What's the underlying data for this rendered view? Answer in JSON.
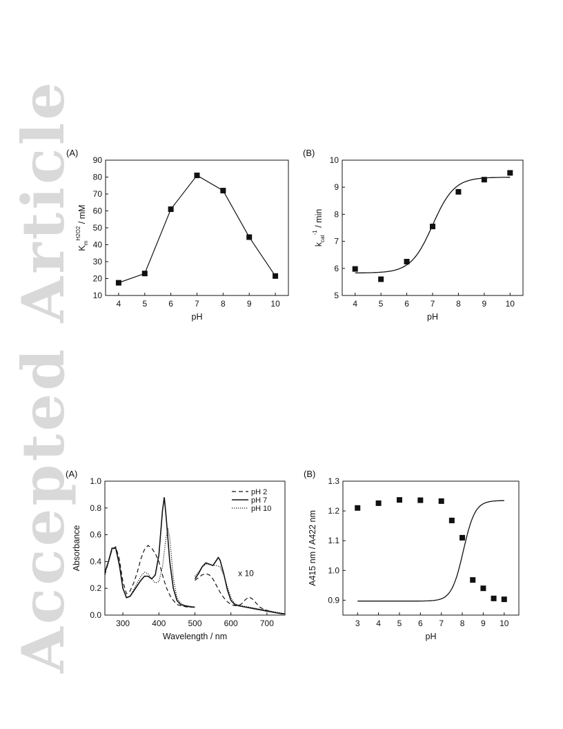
{
  "watermark": {
    "text": "Accepted Article",
    "color": "#d9d9d9"
  },
  "chart_data": [
    {
      "id": "fig1a",
      "type": "line",
      "panel_label": "(A)",
      "xlabel": "pH",
      "ylabel_main": "K",
      "ylabel_sub": "m",
      "ylabel_sup": "H2O2",
      "ylabel_unit": " / mM",
      "xlim": [
        3.5,
        10.5
      ],
      "ylim": [
        10,
        90
      ],
      "xticks": [
        4,
        5,
        6,
        7,
        8,
        9,
        10
      ],
      "yticks": [
        10,
        20,
        30,
        40,
        50,
        60,
        70,
        80,
        90
      ],
      "series": [
        {
          "x": [
            4,
            5,
            6,
            7,
            8,
            9,
            10
          ],
          "y": [
            17.5,
            23,
            61,
            81,
            72,
            44.5,
            21.5
          ],
          "marker": "square",
          "line": "connect"
        }
      ]
    },
    {
      "id": "fig1b",
      "type": "scatter",
      "panel_label": "(B)",
      "xlabel": "pH",
      "ylabel_main": "k",
      "ylabel_sub": "cat",
      "ylabel_sup": "-1",
      "ylabel_unit": " / min",
      "xlim": [
        3.5,
        10.5
      ],
      "ylim": [
        5,
        10
      ],
      "xticks": [
        4,
        5,
        6,
        7,
        8,
        9,
        10
      ],
      "yticks": [
        5,
        6,
        7,
        8,
        9,
        10
      ],
      "series": [
        {
          "x": [
            4,
            5,
            6,
            7,
            8,
            9,
            10
          ],
          "y": [
            5.98,
            5.6,
            6.25,
            7.55,
            8.83,
            9.28,
            9.53
          ],
          "marker": "square"
        }
      ],
      "fit": {
        "model": "sigmoid",
        "bottom": 5.83,
        "top": 9.37,
        "x0": 7.0,
        "width": 0.42
      }
    },
    {
      "id": "fig2a",
      "type": "line",
      "panel_label": "(A)",
      "xlabel": "Wavelength / nm",
      "ylabel": "Absorbance",
      "xlim": [
        250,
        750
      ],
      "ylim": [
        0,
        1.0
      ],
      "xticks": [
        300,
        400,
        500,
        600,
        700
      ],
      "yticks": [
        0.0,
        0.2,
        0.4,
        0.6,
        0.8,
        1.0
      ],
      "annotation": "x 10",
      "legend_position": "top-right",
      "series": [
        {
          "name": "pH 2",
          "style": "dashed",
          "segments": [
            {
              "x": [
                250,
                260,
                270,
                280,
                290,
                300,
                310,
                320,
                330,
                340,
                350,
                360,
                370,
                380,
                390,
                400,
                410,
                420,
                430,
                440,
                450,
                460,
                470,
                480,
                490,
                500
              ],
              "y": [
                0.3,
                0.4,
                0.49,
                0.51,
                0.42,
                0.25,
                0.16,
                0.18,
                0.24,
                0.32,
                0.42,
                0.49,
                0.52,
                0.5,
                0.46,
                0.4,
                0.3,
                0.21,
                0.15,
                0.11,
                0.08,
                0.07,
                0.065,
                0.06,
                0.06,
                0.06
              ]
            },
            {
              "x": [
                500,
                510,
                520,
                530,
                540,
                550,
                560,
                570,
                580,
                590,
                600,
                610,
                620,
                630,
                640,
                650,
                660,
                670,
                680,
                690,
                700,
                710,
                720,
                730,
                740,
                750
              ],
              "y": [
                0.26,
                0.28,
                0.3,
                0.31,
                0.3,
                0.27,
                0.22,
                0.17,
                0.13,
                0.1,
                0.08,
                0.07,
                0.07,
                0.085,
                0.115,
                0.135,
                0.12,
                0.09,
                0.06,
                0.045,
                0.035,
                0.025,
                0.02,
                0.015,
                0.01,
                0.01
              ]
            }
          ]
        },
        {
          "name": "pH 7",
          "style": "solid",
          "segments": [
            {
              "x": [
                250,
                260,
                270,
                280,
                290,
                300,
                310,
                320,
                330,
                340,
                350,
                360,
                370,
                380,
                390,
                400,
                410,
                415,
                420,
                430,
                440,
                450,
                460,
                470,
                480,
                490,
                500
              ],
              "y": [
                0.32,
                0.4,
                0.5,
                0.5,
                0.38,
                0.2,
                0.13,
                0.14,
                0.18,
                0.22,
                0.26,
                0.29,
                0.29,
                0.27,
                0.3,
                0.45,
                0.78,
                0.88,
                0.74,
                0.4,
                0.2,
                0.11,
                0.08,
                0.07,
                0.065,
                0.06,
                0.06
              ]
            },
            {
              "x": [
                500,
                510,
                520,
                530,
                540,
                550,
                560,
                565,
                570,
                580,
                590,
                600,
                610,
                620,
                630,
                640,
                650,
                660,
                670,
                680,
                690,
                700,
                710,
                720,
                730,
                740,
                750
              ],
              "y": [
                0.27,
                0.31,
                0.36,
                0.39,
                0.38,
                0.37,
                0.41,
                0.43,
                0.41,
                0.31,
                0.19,
                0.11,
                0.08,
                0.07,
                0.065,
                0.06,
                0.055,
                0.05,
                0.045,
                0.04,
                0.035,
                0.03,
                0.025,
                0.02,
                0.015,
                0.012,
                0.01
              ]
            }
          ]
        },
        {
          "name": "pH 10",
          "style": "dotted",
          "segments": [
            {
              "x": [
                250,
                260,
                270,
                280,
                290,
                300,
                310,
                320,
                330,
                340,
                350,
                360,
                370,
                380,
                390,
                400,
                410,
                420,
                425,
                430,
                440,
                450,
                460,
                470,
                480,
                490,
                500
              ],
              "y": [
                0.31,
                0.39,
                0.49,
                0.5,
                0.37,
                0.2,
                0.13,
                0.14,
                0.19,
                0.24,
                0.29,
                0.32,
                0.31,
                0.27,
                0.24,
                0.25,
                0.36,
                0.58,
                0.65,
                0.58,
                0.28,
                0.13,
                0.09,
                0.075,
                0.07,
                0.065,
                0.06
              ]
            },
            {
              "x": [
                500,
                510,
                520,
                530,
                540,
                550,
                560,
                570,
                580,
                590,
                600,
                610,
                620,
                630,
                640,
                650,
                660,
                670,
                680,
                690,
                700,
                710,
                720,
                730,
                740,
                750
              ],
              "y": [
                0.29,
                0.32,
                0.36,
                0.38,
                0.38,
                0.37,
                0.37,
                0.36,
                0.3,
                0.21,
                0.13,
                0.09,
                0.075,
                0.07,
                0.065,
                0.06,
                0.055,
                0.05,
                0.045,
                0.04,
                0.035,
                0.03,
                0.025,
                0.02,
                0.015,
                0.01
              ]
            }
          ]
        }
      ]
    },
    {
      "id": "fig2b",
      "type": "scatter",
      "panel_label": "(B)",
      "xlabel": "pH",
      "ylabel": "A415 nm / A422 nm",
      "xlim": [
        2.3,
        10.7
      ],
      "ylim": [
        0.85,
        1.3
      ],
      "xticks": [
        3,
        4,
        5,
        6,
        7,
        8,
        9,
        10
      ],
      "yticks": [
        0.9,
        1.0,
        1.1,
        1.2,
        1.3
      ],
      "series": [
        {
          "x": [
            3,
            4,
            5,
            6,
            7,
            7.5,
            8,
            8.5,
            9,
            9.5,
            10
          ],
          "y": [
            1.21,
            1.226,
            1.237,
            1.236,
            1.233,
            1.168,
            1.11,
            0.968,
            0.94,
            0.906,
            0.903
          ],
          "marker": "square"
        }
      ],
      "fit": {
        "model": "sigmoid",
        "bottom": 0.897,
        "top": 1.235,
        "x0": 8.05,
        "width": 0.28
      }
    }
  ]
}
